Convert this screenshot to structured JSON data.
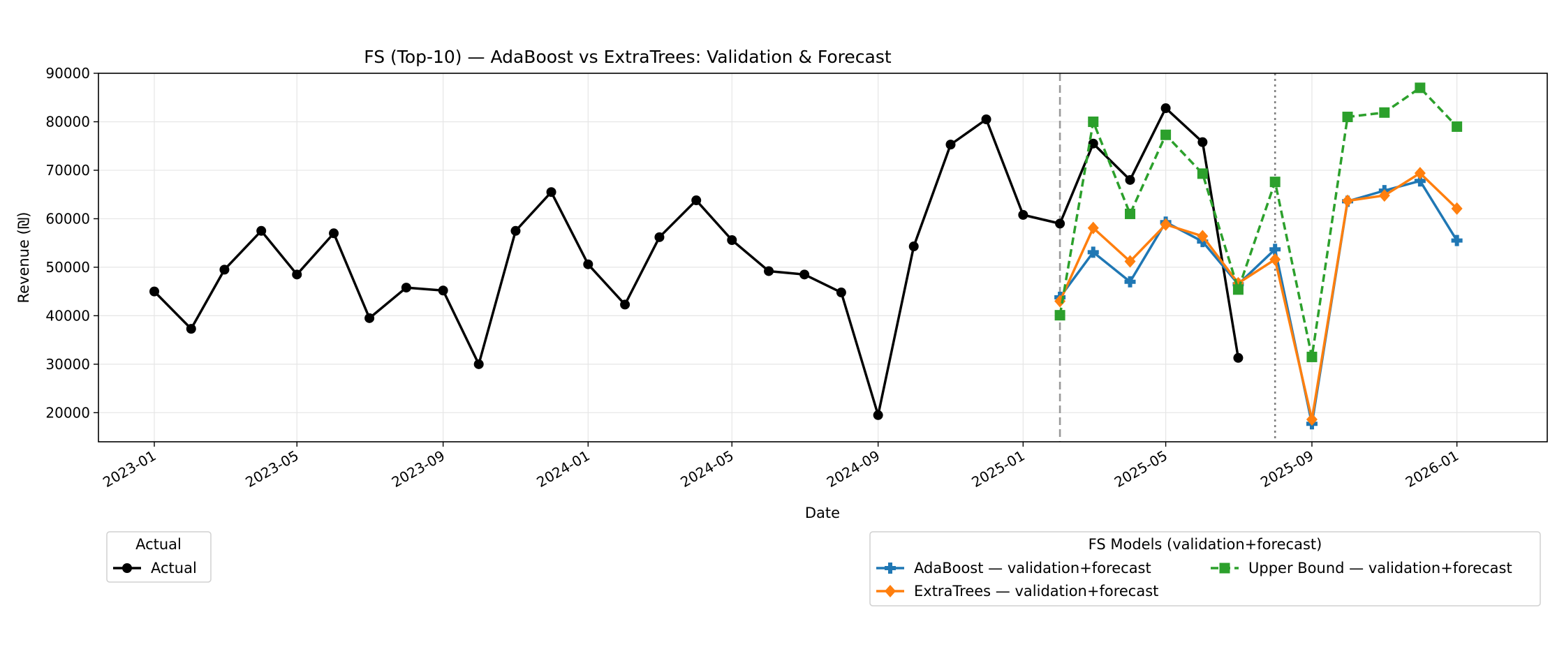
{
  "chart_data": {
    "type": "line",
    "title": "FS (Top-10) — AdaBoost vs ExtraTrees: Validation & Forecast",
    "xlabel": "Date",
    "ylabel": "Revenue (₪)",
    "ylim": [
      14000,
      90000
    ],
    "xlim": [
      "2022-11-15",
      "2026-03-18"
    ],
    "grid": true,
    "x_ticks": [
      "2023-01",
      "2023-05",
      "2023-09",
      "2024-01",
      "2024-05",
      "2024-09",
      "2025-01",
      "2025-05",
      "2025-09",
      "2026-01"
    ],
    "y_ticks": [
      20000,
      30000,
      40000,
      50000,
      60000,
      70000,
      80000,
      90000
    ],
    "vlines": [
      {
        "x": "2025-02-01",
        "style": "dashed",
        "color": "#999999"
      },
      {
        "x": "2025-08-01",
        "style": "dotted",
        "color": "#808080"
      }
    ],
    "series": [
      {
        "name": "Actual",
        "color": "#000000",
        "marker": "circle",
        "style": "solid",
        "x": [
          "2023-01-01",
          "2023-02-01",
          "2023-03-01",
          "2023-04-01",
          "2023-05-01",
          "2023-06-01",
          "2023-07-01",
          "2023-08-01",
          "2023-09-01",
          "2023-10-01",
          "2023-11-01",
          "2023-12-01",
          "2024-01-01",
          "2024-02-01",
          "2024-03-01",
          "2024-04-01",
          "2024-05-01",
          "2024-06-01",
          "2024-07-01",
          "2024-08-01",
          "2024-09-01",
          "2024-10-01",
          "2024-11-01",
          "2024-12-01",
          "2025-01-01",
          "2025-02-01",
          "2025-03-01",
          "2025-04-01",
          "2025-05-01",
          "2025-06-01",
          "2025-07-01"
        ],
        "values": [
          45000,
          37300,
          49500,
          57500,
          48500,
          57000,
          39500,
          45800,
          45200,
          30000,
          57500,
          65500,
          50600,
          42300,
          56200,
          63800,
          55600,
          49200,
          48500,
          44800,
          19500,
          54300,
          75300,
          80500,
          60800,
          59000,
          75500,
          68000,
          82800,
          75800,
          31300
        ]
      },
      {
        "name": "AdaBoost — validation+forecast",
        "color": "#1f77b4",
        "marker": "plus",
        "style": "solid",
        "x": [
          "2025-02-01",
          "2025-03-01",
          "2025-04-01",
          "2025-05-01",
          "2025-06-01",
          "2025-07-01",
          "2025-08-01",
          "2025-09-01",
          "2025-10-01",
          "2025-11-01",
          "2025-12-01",
          "2026-01-01"
        ],
        "values": [
          43800,
          53100,
          47000,
          59300,
          55300,
          46500,
          53700,
          17700,
          63600,
          65800,
          67800,
          55500
        ]
      },
      {
        "name": "ExtraTrees — validation+forecast",
        "color": "#ff7f0e",
        "marker": "diamond",
        "style": "solid",
        "x": [
          "2025-02-01",
          "2025-03-01",
          "2025-04-01",
          "2025-05-01",
          "2025-06-01",
          "2025-07-01",
          "2025-08-01",
          "2025-09-01",
          "2025-10-01",
          "2025-11-01",
          "2025-12-01",
          "2026-01-01"
        ],
        "values": [
          43000,
          58100,
          51200,
          58800,
          56400,
          46700,
          51600,
          18600,
          63700,
          64800,
          69400,
          62100
        ]
      },
      {
        "name": "Upper Bound — validation+forecast",
        "color": "#2ca02c",
        "marker": "square",
        "style": "dashed",
        "x": [
          "2025-02-01",
          "2025-03-01",
          "2025-04-01",
          "2025-05-01",
          "2025-06-01",
          "2025-07-01",
          "2025-08-01",
          "2025-09-01",
          "2025-10-01",
          "2025-11-01",
          "2025-12-01",
          "2026-01-01"
        ],
        "values": [
          40100,
          80000,
          61000,
          77300,
          69300,
          45400,
          67600,
          31500,
          81000,
          81900,
          87000,
          79000
        ]
      }
    ],
    "legends": [
      {
        "title": "Actual",
        "entries": [
          "Actual"
        ],
        "placement": "bottom-left"
      },
      {
        "title": "FS Models (validation+forecast)",
        "entries": [
          "AdaBoost — validation+forecast",
          "ExtraTrees — validation+forecast",
          "Upper Bound — validation+forecast"
        ],
        "placement": "bottom-right"
      }
    ]
  }
}
